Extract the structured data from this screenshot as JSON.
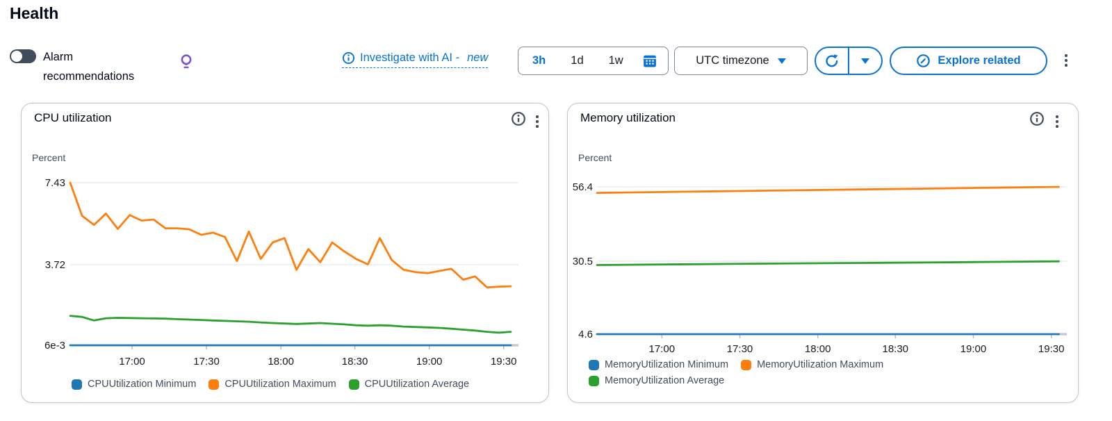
{
  "page": {
    "title": "Health"
  },
  "header": {
    "alarm_label": "Alarm recommendations",
    "investigate": {
      "label": "Investigate with AI -",
      "badge": "new"
    },
    "time_range": {
      "options": [
        "3h",
        "1d",
        "1w"
      ],
      "selected": "3h"
    },
    "timezone_label": "UTC timezone",
    "explore_label": "Explore related"
  },
  "colors": {
    "accent": "#0972d3",
    "series_min": "#1f77b4",
    "series_max": "#ff7f0e",
    "series_avg": "#2ca02c",
    "bulb_purple": "#7d55c7",
    "icon_dark": "#414d5c",
    "gridline": "#e9ebed"
  },
  "chart_data": [
    {
      "type": "line",
      "title": "CPU utilization",
      "ylabel": "Percent",
      "y_tick_labels": [
        "7.43",
        "3.72",
        "6e-3"
      ],
      "y_tick_values": [
        7.43,
        3.72,
        0.006
      ],
      "x_tick_labels": [
        "17:00",
        "17:30",
        "18:00",
        "18:30",
        "19:00",
        "19:30"
      ],
      "x_domain": {
        "start": "16:35",
        "end": "19:33"
      },
      "grid": "horizontal",
      "legend_position": "bottom",
      "series": [
        {
          "name": "CPUUtilization Minimum",
          "color": "#1f77b4",
          "values": [
            0.006,
            0.006,
            0.006,
            0.006,
            0.006,
            0.006,
            0.006,
            0.006,
            0.006,
            0.006,
            0.006,
            0.006,
            0.006,
            0.006,
            0.006,
            0.006,
            0.006,
            0.006,
            0.006,
            0.006,
            0.006,
            0.006,
            0.006,
            0.006,
            0.006,
            0.006,
            0.006,
            0.006,
            0.006,
            0.006,
            0.006,
            0.006,
            0.006,
            0.006,
            0.006,
            0.006,
            0.006,
            0.006
          ]
        },
        {
          "name": "CPUUtilization Maximum",
          "color": "#ff7f0e",
          "values": [
            7.43,
            5.92,
            5.5,
            6.02,
            5.32,
            5.95,
            5.7,
            5.75,
            5.35,
            5.35,
            5.3,
            5.05,
            5.15,
            4.95,
            3.85,
            5.2,
            3.95,
            4.7,
            4.9,
            3.45,
            4.4,
            3.8,
            4.7,
            4.3,
            3.95,
            3.7,
            4.9,
            3.9,
            3.45,
            3.35,
            3.3,
            3.4,
            3.5,
            3.0,
            3.15,
            2.65,
            2.68,
            2.7
          ]
        },
        {
          "name": "CPUUtilization Average",
          "color": "#2ca02c",
          "values": [
            1.35,
            1.3,
            1.14,
            1.24,
            1.26,
            1.25,
            1.24,
            1.23,
            1.22,
            1.2,
            1.18,
            1.16,
            1.14,
            1.12,
            1.1,
            1.08,
            1.05,
            1.02,
            1.0,
            0.98,
            1.0,
            1.02,
            0.99,
            0.96,
            0.92,
            0.9,
            0.92,
            0.9,
            0.86,
            0.84,
            0.82,
            0.8,
            0.76,
            0.72,
            0.68,
            0.62,
            0.58,
            0.62
          ]
        }
      ]
    },
    {
      "type": "line",
      "title": "Memory utilization",
      "ylabel": "Percent",
      "y_tick_labels": [
        "56.4",
        "30.5",
        "4.6"
      ],
      "y_tick_values": [
        56.4,
        30.5,
        4.6
      ],
      "x_tick_labels": [
        "17:00",
        "17:30",
        "18:00",
        "18:30",
        "19:00",
        "19:30"
      ],
      "x_domain": {
        "start": "16:35",
        "end": "19:33"
      },
      "grid": "horizontal",
      "legend_position": "bottom",
      "series": [
        {
          "name": "MemoryUtilization Minimum",
          "color": "#1f77b4",
          "values": [
            4.6,
            4.6,
            4.6,
            4.6,
            4.6,
            4.6,
            4.6,
            4.6
          ]
        },
        {
          "name": "MemoryUtilization Maximum",
          "color": "#ff7f0e",
          "values": [
            54.3,
            54.6,
            54.9,
            55.2,
            55.5,
            55.8,
            56.1,
            56.4
          ]
        },
        {
          "name": "MemoryUtilization Average",
          "color": "#2ca02c",
          "values": [
            28.9,
            29.1,
            29.3,
            29.5,
            29.65,
            29.8,
            30.0,
            30.2
          ]
        }
      ]
    }
  ]
}
